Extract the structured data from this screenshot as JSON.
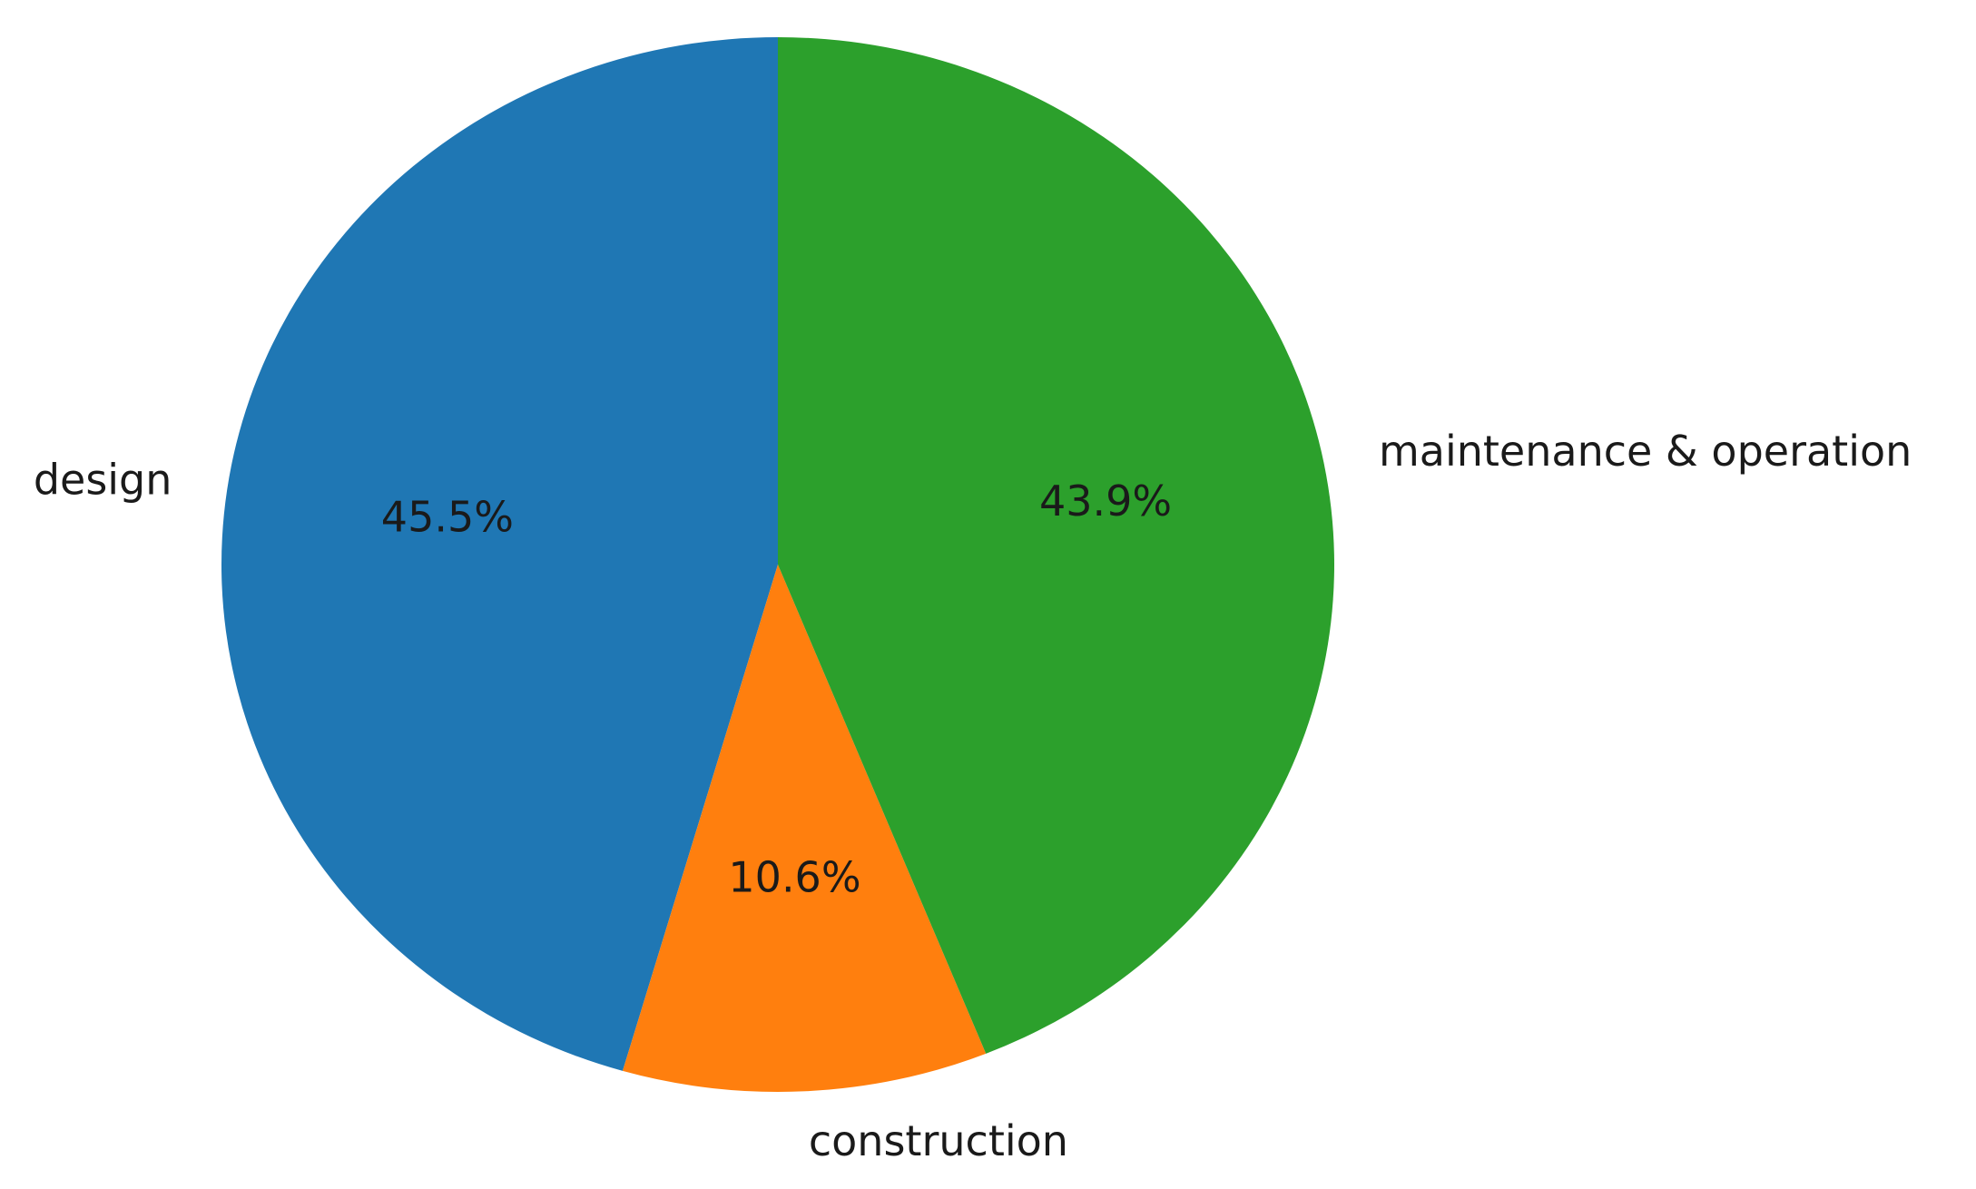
{
  "chart_data": {
    "type": "pie",
    "categories": [
      "design",
      "construction",
      "maintenance & operation"
    ],
    "values": [
      45.5,
      10.6,
      43.9
    ],
    "value_labels": [
      "45.5%",
      "10.6%",
      "43.9%"
    ],
    "colors": [
      "#1f77b4",
      "#ff7f0e",
      "#2ca02c"
    ],
    "start_angle": 90,
    "direction": "counterclockwise"
  }
}
